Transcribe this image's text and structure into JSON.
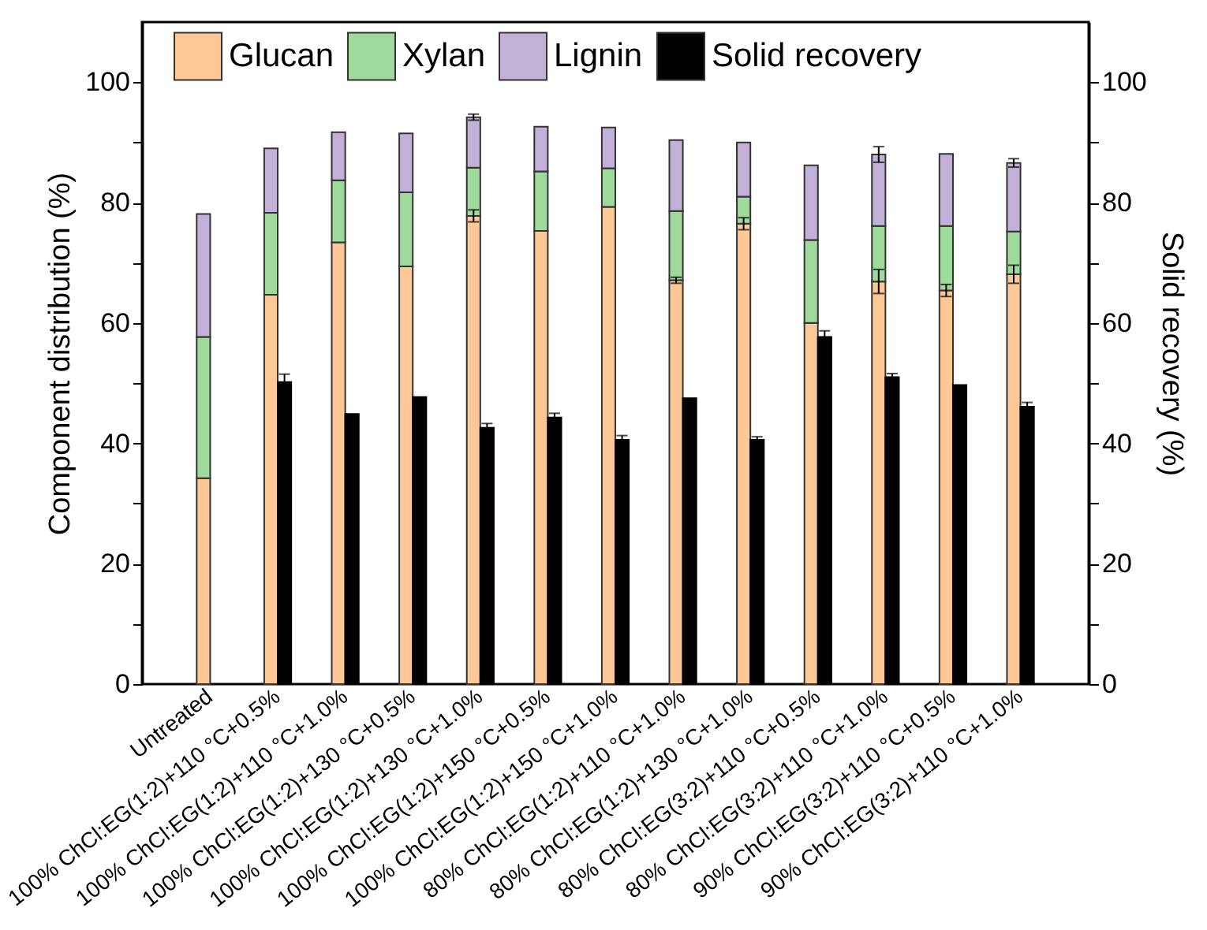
{
  "chart_data": {
    "type": "bar",
    "stacked": true,
    "xlabel": null,
    "ylabel": "Component distribution (%)",
    "y2label": "Solid recovery (%)",
    "categories": [
      "Untreated",
      "100% ChCl:EG(1:2)+110 °C+0.5%",
      "100% ChCl:EG(1:2)+110 °C+1.0%",
      "100% ChCl:EG(1:2)+130 °C+0.5%",
      "100% ChCl:EG(1:2)+130 °C+1.0%",
      "100% ChCl:EG(1:2)+150 °C+0.5%",
      "100% ChCl:EG(1:2)+150 °C+1.0%",
      "80% ChCl:EG(1:2)+110 °C+1.0%",
      "80% ChCl:EG(1:2)+130 °C+1.0%",
      "80% ChCl:EG(3:2)+110 °C+0.5%",
      "80% ChCl:EG(3:2)+110 °C+1.0%",
      "90% ChCl:EG(3:2)+110 °C+0.5%",
      "90% ChCl:EG(3:2)+110 °C+1.0%"
    ],
    "series": [
      {
        "name": "Glucan",
        "color": "#fdc896",
        "values": [
          34.2,
          64.7,
          73.4,
          69.4,
          77.8,
          75.3,
          79.3,
          67.1,
          76.5,
          60.0,
          66.9,
          65.4,
          68.1
        ],
        "errors": [
          null,
          null,
          null,
          null,
          1,
          null,
          null,
          0.5,
          1,
          null,
          2,
          1,
          1.5
        ]
      },
      {
        "name": "Xylan",
        "color": "#9fd99b",
        "values": [
          23.5,
          13.6,
          10.3,
          12.3,
          8.0,
          9.9,
          6.4,
          11.5,
          4.5,
          13.8,
          9.2,
          10.7,
          7.1
        ]
      },
      {
        "name": "Lignin",
        "color": "#c2b1d6",
        "values": [
          20.4,
          10.7,
          8.0,
          9.8,
          8.4,
          7.4,
          6.8,
          11.8,
          9.0,
          12.4,
          11.9,
          12.0,
          11.4
        ],
        "errors": [
          null,
          null,
          null,
          null,
          0.5,
          null,
          null,
          null,
          null,
          null,
          1.3,
          null,
          0.7
        ]
      },
      {
        "name": "Solid recovery",
        "color": "#000000",
        "axis": "y2",
        "values": [
          null,
          50.2,
          44.9,
          47.7,
          42.6,
          44.3,
          40.6,
          47.5,
          40.6,
          57.7,
          51.0,
          49.7,
          46.1
        ],
        "errors": [
          null,
          1.3,
          null,
          null,
          0.7,
          0.7,
          0.7,
          null,
          0.5,
          1,
          0.6,
          null,
          0.7
        ]
      }
    ],
    "ylim": [
      0,
      110
    ],
    "yticks": [
      0,
      {
        "value": 10,
        "label": null
      },
      20,
      {
        "value": 30,
        "label": null
      },
      40,
      {
        "value": 50,
        "label": null
      },
      60,
      {
        "value": 70,
        "label": null
      },
      80,
      {
        "value": 90,
        "label": null
      },
      100
    ],
    "y2lim": [
      0,
      110
    ],
    "y2ticks": [
      0,
      {
        "value": 10,
        "label": null
      },
      20,
      {
        "value": 30,
        "label": null
      },
      40,
      {
        "value": 50,
        "label": null
      },
      60,
      {
        "value": 70,
        "label": null
      },
      80,
      {
        "value": 90,
        "label": null
      },
      100
    ],
    "grid": false,
    "legend": "top"
  }
}
